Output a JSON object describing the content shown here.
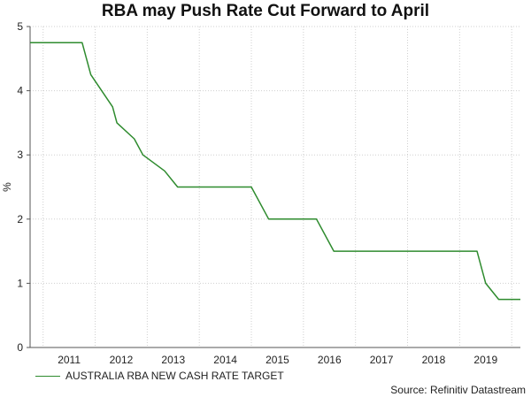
{
  "chart_data": {
    "type": "line",
    "title": "RBA may Push Rate Cut Forward to April",
    "ylabel": "%",
    "ylim": [
      0,
      5
    ],
    "y_ticks": [
      "0",
      "1",
      "2",
      "3",
      "4",
      "5"
    ],
    "x_ticks": [
      "2011",
      "2012",
      "2013",
      "2014",
      "2015",
      "2016",
      "2017",
      "2018",
      "2019"
    ],
    "grid": true,
    "legend_position": "bottom-left",
    "line_color": "#2e8b2e",
    "series": [
      {
        "name": "AUSTRALIA RBA NEW CASH RATE TARGET",
        "points": [
          [
            "2010-10",
            4.75
          ],
          [
            "2011-10",
            4.75
          ],
          [
            "2011-11",
            4.5
          ],
          [
            "2011-12",
            4.25
          ],
          [
            "2012-05",
            3.75
          ],
          [
            "2012-06",
            3.5
          ],
          [
            "2012-10",
            3.25
          ],
          [
            "2012-12",
            3.0
          ],
          [
            "2013-05",
            2.75
          ],
          [
            "2013-08",
            2.5
          ],
          [
            "2015-01",
            2.5
          ],
          [
            "2015-05",
            2.0
          ],
          [
            "2016-04",
            2.0
          ],
          [
            "2016-08",
            1.5
          ],
          [
            "2019-05",
            1.5
          ],
          [
            "2019-06",
            1.25
          ],
          [
            "2019-07",
            1.0
          ],
          [
            "2019-10",
            0.75
          ],
          [
            "2020-03",
            0.75
          ]
        ]
      }
    ],
    "source": "Source: Refinitiv Datastream"
  }
}
